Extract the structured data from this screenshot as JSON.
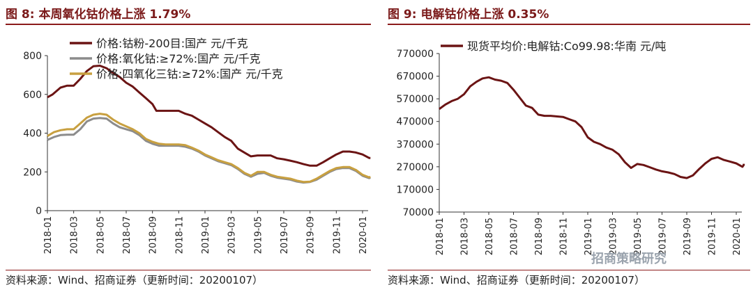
{
  "left_panel": {
    "figure_title": "图 8:  本周氧化钴价格上涨 1.79%",
    "source": "资料来源：Wind、招商证券（更新时间：20200107）"
  },
  "right_panel": {
    "figure_title": "图 9:  电解钴价格上涨 0.35%",
    "source": "资料来源：Wind、招商证券（更新时间：20200107）"
  },
  "watermark": "招商策略研究",
  "colors": {
    "accent": "#8b1a1a",
    "title": "#7b1a1a",
    "series_dark": "#6b1414",
    "series_gray": "#8c8c8c",
    "series_gold": "#c8a040"
  },
  "chart_data": [
    {
      "type": "line",
      "title": "",
      "xlabel": "",
      "ylabel": "",
      "ylim": [
        0,
        800
      ],
      "yticks": [
        0,
        200,
        400,
        600,
        800
      ],
      "xticks": [
        "2018-01",
        "2018-03",
        "2018-05",
        "2018-07",
        "2018-09",
        "2018-11",
        "2019-01",
        "2019-03",
        "2019-05",
        "2019-07",
        "2019-09",
        "2019-11",
        "2020-01"
      ],
      "legend_position": "top",
      "x_unit": "months since 2018-01",
      "series": [
        {
          "name": "价格:钴粉-200目:国产 元/千克",
          "color": "#6b1414",
          "points": [
            [
              0,
              585
            ],
            [
              0.4,
              600
            ],
            [
              1,
              635
            ],
            [
              1.5,
              645
            ],
            [
              2,
              645
            ],
            [
              2.5,
              680
            ],
            [
              3,
              720
            ],
            [
              3.5,
              745
            ],
            [
              4,
              748
            ],
            [
              4.5,
              735
            ],
            [
              5,
              710
            ],
            [
              5.5,
              690
            ],
            [
              6,
              660
            ],
            [
              6.5,
              640
            ],
            [
              7,
              610
            ],
            [
              7.5,
              580
            ],
            [
              8,
              550
            ],
            [
              8.3,
              515
            ],
            [
              9,
              515
            ],
            [
              10,
              515
            ],
            [
              10.5,
              500
            ],
            [
              11,
              490
            ],
            [
              11.5,
              470
            ],
            [
              12,
              450
            ],
            [
              12.5,
              430
            ],
            [
              13,
              405
            ],
            [
              13.5,
              380
            ],
            [
              14,
              360
            ],
            [
              14.5,
              320
            ],
            [
              15,
              300
            ],
            [
              15.5,
              280
            ],
            [
              16,
              285
            ],
            [
              16.5,
              285
            ],
            [
              17,
              285
            ],
            [
              17.5,
              270
            ],
            [
              18,
              265
            ],
            [
              18.5,
              258
            ],
            [
              19,
              250
            ],
            [
              19.5,
              240
            ],
            [
              20,
              232
            ],
            [
              20.5,
              232
            ],
            [
              21,
              250
            ],
            [
              21.5,
              270
            ],
            [
              22,
              290
            ],
            [
              22.5,
              305
            ],
            [
              23,
              305
            ],
            [
              23.5,
              300
            ],
            [
              24,
              290
            ],
            [
              24.5,
              272
            ],
            [
              25,
              272
            ],
            [
              25.3,
              272
            ]
          ]
        },
        {
          "name": "价格:氧化钴:≥72%:国产 元/千克",
          "color": "#8c8c8c",
          "points": [
            [
              0,
              365
            ],
            [
              0.5,
              380
            ],
            [
              1,
              390
            ],
            [
              1.5,
              392
            ],
            [
              2,
              392
            ],
            [
              2.5,
              420
            ],
            [
              3,
              460
            ],
            [
              3.5,
              475
            ],
            [
              4,
              478
            ],
            [
              4.5,
              475
            ],
            [
              5,
              450
            ],
            [
              5.5,
              430
            ],
            [
              6,
              420
            ],
            [
              6.5,
              410
            ],
            [
              7,
              390
            ],
            [
              7.5,
              360
            ],
            [
              8,
              345
            ],
            [
              8.5,
              335
            ],
            [
              9,
              335
            ],
            [
              10,
              335
            ],
            [
              10.5,
              330
            ],
            [
              11,
              320
            ],
            [
              11.5,
              305
            ],
            [
              12,
              285
            ],
            [
              12.5,
              270
            ],
            [
              13,
              255
            ],
            [
              13.5,
              245
            ],
            [
              14,
              235
            ],
            [
              14.5,
              215
            ],
            [
              15,
              190
            ],
            [
              15.5,
              175
            ],
            [
              16,
              190
            ],
            [
              16.5,
              195
            ],
            [
              17,
              180
            ],
            [
              17.5,
              170
            ],
            [
              18,
              165
            ],
            [
              18.5,
              160
            ],
            [
              19,
              150
            ],
            [
              19.5,
              145
            ],
            [
              20,
              148
            ],
            [
              20.5,
              160
            ],
            [
              21,
              180
            ],
            [
              21.5,
              200
            ],
            [
              22,
              215
            ],
            [
              22.5,
              220
            ],
            [
              23,
              220
            ],
            [
              23.5,
              205
            ],
            [
              24,
              180
            ],
            [
              24.5,
              168
            ],
            [
              25,
              170
            ],
            [
              25.3,
              170
            ]
          ]
        },
        {
          "name": "价格:四氧化三钴:≥72%:国产 元/千克",
          "color": "#c8a040",
          "points": [
            [
              0,
              385
            ],
            [
              0.5,
              405
            ],
            [
              1,
              415
            ],
            [
              1.5,
              420
            ],
            [
              2,
              420
            ],
            [
              2.5,
              450
            ],
            [
              3,
              480
            ],
            [
              3.5,
              495
            ],
            [
              4,
              500
            ],
            [
              4.5,
              495
            ],
            [
              5,
              470
            ],
            [
              5.5,
              450
            ],
            [
              6,
              435
            ],
            [
              6.5,
              420
            ],
            [
              7,
              400
            ],
            [
              7.5,
              370
            ],
            [
              8,
              355
            ],
            [
              8.5,
              345
            ],
            [
              9,
              342
            ],
            [
              10,
              342
            ],
            [
              10.5,
              338
            ],
            [
              11,
              325
            ],
            [
              11.5,
              310
            ],
            [
              12,
              290
            ],
            [
              12.5,
              275
            ],
            [
              13,
              260
            ],
            [
              13.5,
              250
            ],
            [
              14,
              240
            ],
            [
              14.5,
              220
            ],
            [
              15,
              195
            ],
            [
              15.5,
              180
            ],
            [
              16,
              200
            ],
            [
              16.5,
              200
            ],
            [
              17,
              185
            ],
            [
              17.5,
              175
            ],
            [
              18,
              170
            ],
            [
              18.5,
              165
            ],
            [
              19,
              155
            ],
            [
              19.5,
              148
            ],
            [
              20,
              150
            ],
            [
              20.5,
              165
            ],
            [
              21,
              185
            ],
            [
              21.5,
              205
            ],
            [
              22,
              220
            ],
            [
              22.5,
              225
            ],
            [
              23,
              225
            ],
            [
              23.5,
              210
            ],
            [
              24,
              185
            ],
            [
              24.5,
              172
            ],
            [
              25,
              175
            ],
            [
              25.3,
              175
            ]
          ]
        }
      ]
    },
    {
      "type": "line",
      "title": "",
      "xlabel": "",
      "ylabel": "",
      "ylim": [
        70000,
        770000
      ],
      "yticks": [
        70000,
        170000,
        270000,
        370000,
        470000,
        570000,
        670000,
        770000
      ],
      "xticks": [
        "2018-01",
        "2018-03",
        "2018-05",
        "2018-07",
        "2018-09",
        "2018-11",
        "2019-01",
        "2019-03",
        "2019-05",
        "2019-07",
        "2019-09",
        "2019-11",
        "2020-01"
      ],
      "legend_position": "top",
      "x_unit": "months since 2018-01",
      "series": [
        {
          "name": "现货平均价:电解钴:Co99.98:华南 元/吨",
          "color": "#6b1414",
          "points": [
            [
              0,
              525000
            ],
            [
              0.5,
              545000
            ],
            [
              1,
              560000
            ],
            [
              1.5,
              570000
            ],
            [
              2,
              590000
            ],
            [
              2.5,
              625000
            ],
            [
              3,
              645000
            ],
            [
              3.5,
              660000
            ],
            [
              4,
              665000
            ],
            [
              4.5,
              655000
            ],
            [
              5,
              650000
            ],
            [
              5.5,
              640000
            ],
            [
              6,
              610000
            ],
            [
              6.5,
              575000
            ],
            [
              7,
              540000
            ],
            [
              7.5,
              530000
            ],
            [
              8,
              500000
            ],
            [
              8.5,
              495000
            ],
            [
              9,
              495000
            ],
            [
              10,
              490000
            ],
            [
              10.5,
              480000
            ],
            [
              11,
              470000
            ],
            [
              11.5,
              445000
            ],
            [
              12,
              400000
            ],
            [
              12.5,
              380000
            ],
            [
              13,
              370000
            ],
            [
              13.5,
              355000
            ],
            [
              14,
              345000
            ],
            [
              14.5,
              325000
            ],
            [
              15,
              290000
            ],
            [
              15.5,
              265000
            ],
            [
              16,
              282000
            ],
            [
              16.5,
              278000
            ],
            [
              17,
              268000
            ],
            [
              17.5,
              258000
            ],
            [
              18,
              250000
            ],
            [
              18.5,
              245000
            ],
            [
              19,
              238000
            ],
            [
              19.5,
              225000
            ],
            [
              20,
              220000
            ],
            [
              20.5,
              232000
            ],
            [
              21,
              260000
            ],
            [
              21.5,
              285000
            ],
            [
              22,
              305000
            ],
            [
              22.5,
              312000
            ],
            [
              23,
              300000
            ],
            [
              23.5,
              293000
            ],
            [
              24,
              285000
            ],
            [
              24.5,
              270000
            ],
            [
              25,
              278000
            ],
            [
              25.3,
              283000
            ]
          ]
        }
      ]
    }
  ]
}
